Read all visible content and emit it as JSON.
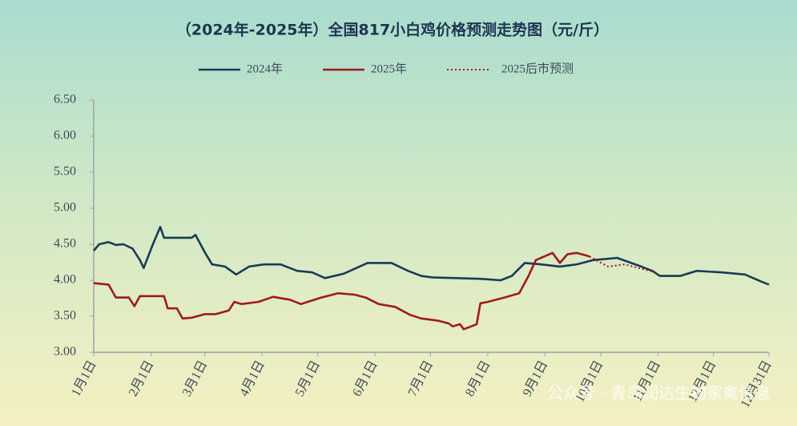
{
  "chart_data": {
    "type": "line",
    "title": "（2024年-2025年）全国817小白鸡价格预测走势图（元/斤）",
    "watermark": "公众号 · 青岛润达生物家禽信息",
    "xlim": [
      0,
      365
    ],
    "xticks": [
      {
        "value": 0,
        "label": "1月1日"
      },
      {
        "value": 31,
        "label": "2月1日"
      },
      {
        "value": 60,
        "label": "3月1日"
      },
      {
        "value": 91,
        "label": "4月1日"
      },
      {
        "value": 121,
        "label": "5月1日"
      },
      {
        "value": 152,
        "label": "6月1日"
      },
      {
        "value": 182,
        "label": "7月1日"
      },
      {
        "value": 213,
        "label": "8月1日"
      },
      {
        "value": 244,
        "label": "9月1日"
      },
      {
        "value": 274,
        "label": "10月1日"
      },
      {
        "value": 305,
        "label": "11月1日"
      },
      {
        "value": 335,
        "label": "12月1日"
      },
      {
        "value": 365,
        "label": "12月31日"
      }
    ],
    "ylim": [
      3,
      6.5
    ],
    "yticks": [
      {
        "value": 3,
        "label": "3.00"
      },
      {
        "value": 3.5,
        "label": "3.50"
      },
      {
        "value": 4,
        "label": "4.00"
      },
      {
        "value": 4.5,
        "label": "4.50"
      },
      {
        "value": 5,
        "label": "5.00"
      },
      {
        "value": 5.5,
        "label": "5.50"
      },
      {
        "value": 6,
        "label": "6.00"
      },
      {
        "value": 6.5,
        "label": "6.50"
      }
    ],
    "grid": false,
    "series": [
      {
        "name": "2024年",
        "color": "#173b56",
        "style": "solid",
        "x": [
          0,
          3,
          8,
          12,
          16,
          21,
          25,
          27,
          32,
          36,
          38,
          53,
          55,
          60,
          64,
          71,
          77,
          84,
          92,
          101,
          110,
          118,
          125,
          135,
          148,
          161,
          170,
          177,
          183,
          196,
          209,
          220,
          226,
          233,
          242,
          252,
          261,
          270,
          283,
          296,
          302,
          306,
          317,
          326,
          339,
          352,
          361,
          365
        ],
        "values": [
          4.41,
          4.5,
          4.53,
          4.49,
          4.5,
          4.44,
          4.28,
          4.17,
          4.5,
          4.74,
          4.59,
          4.59,
          4.63,
          4.39,
          4.22,
          4.19,
          4.08,
          4.19,
          4.22,
          4.22,
          4.13,
          4.11,
          4.03,
          4.09,
          4.24,
          4.24,
          4.13,
          4.06,
          4.04,
          4.03,
          4.02,
          4.0,
          4.06,
          4.24,
          4.22,
          4.19,
          4.22,
          4.28,
          4.31,
          4.19,
          4.13,
          4.06,
          4.06,
          4.13,
          4.11,
          4.08,
          3.98,
          3.94
        ]
      },
      {
        "name": "2025年",
        "color": "#9e1b1b",
        "style": "solid",
        "x": [
          0,
          8,
          12,
          19,
          22,
          25,
          38,
          40,
          45,
          48,
          53,
          60,
          66,
          73,
          76,
          80,
          89,
          97,
          106,
          112,
          123,
          132,
          141,
          147,
          154,
          163,
          171,
          177,
          186,
          192,
          194,
          198,
          200,
          207,
          209,
          213,
          222,
          230,
          235,
          239,
          248,
          252,
          256,
          261,
          268
        ],
        "values": [
          3.96,
          3.94,
          3.76,
          3.76,
          3.64,
          3.78,
          3.78,
          3.61,
          3.61,
          3.47,
          3.48,
          3.53,
          3.53,
          3.58,
          3.7,
          3.67,
          3.7,
          3.77,
          3.73,
          3.67,
          3.76,
          3.82,
          3.8,
          3.76,
          3.67,
          3.63,
          3.52,
          3.47,
          3.44,
          3.4,
          3.36,
          3.39,
          3.32,
          3.39,
          3.68,
          3.7,
          3.76,
          3.82,
          4.06,
          4.28,
          4.38,
          4.24,
          4.36,
          4.38,
          4.33
        ]
      },
      {
        "name": "2025后市预测",
        "color": "#9e1b1b",
        "style": "dotted",
        "x": [
          268,
          278,
          287,
          296,
          304
        ],
        "values": [
          4.33,
          4.19,
          4.22,
          4.16,
          4.11
        ]
      }
    ]
  }
}
